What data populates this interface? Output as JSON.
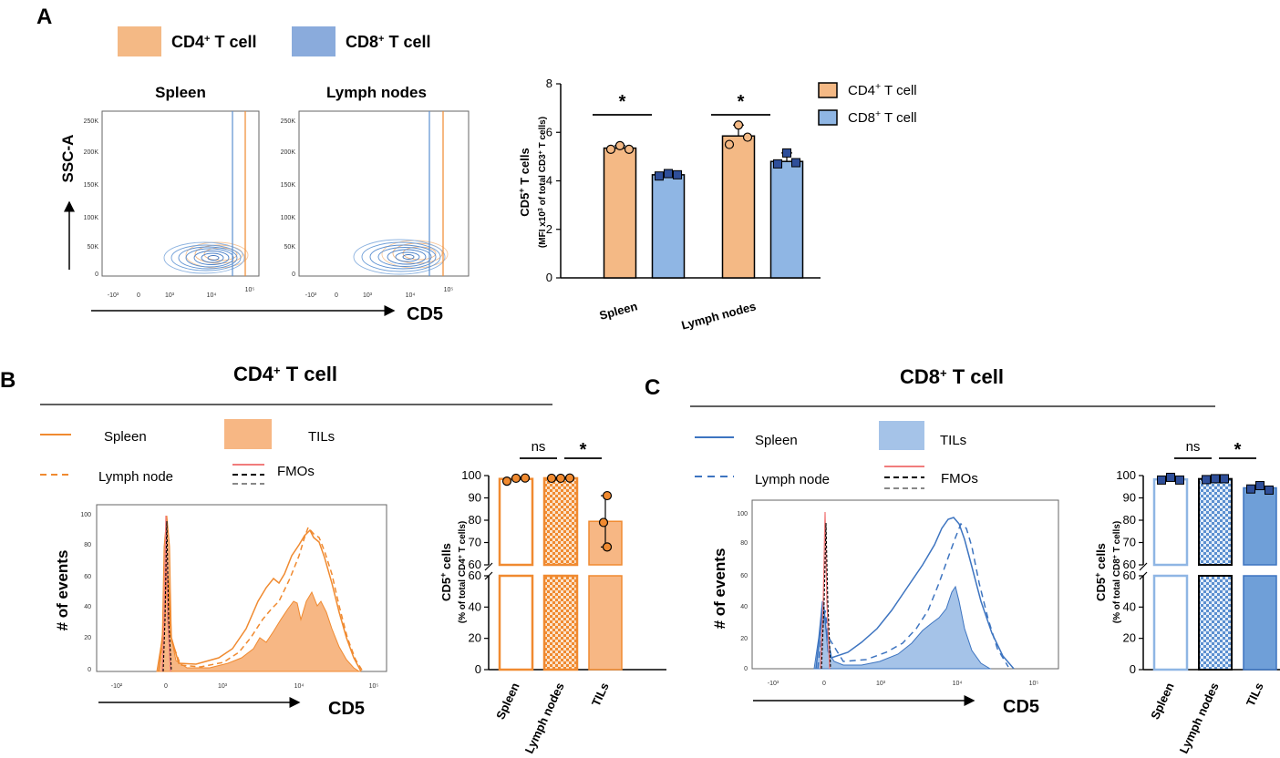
{
  "panel_a": {
    "letter": "A",
    "legend": [
      {
        "label": "CD4",
        "sup": "+",
        "rest": " T cell",
        "color": "#f4b985"
      },
      {
        "label": "CD8",
        "sup": "+",
        "rest": " T cell",
        "color": "#8aabdc"
      }
    ],
    "flow_titles": [
      "Spleen",
      "Lymph nodes"
    ],
    "flow_y_label": "SSC-A",
    "flow_x_label": "CD5",
    "flow_y_ticks": [
      "250K",
      "200K",
      "150K",
      "100K",
      "50K",
      "0"
    ],
    "flow_x_ticks": [
      "-10³",
      "0",
      "10³",
      "10⁴",
      "10⁵"
    ]
  },
  "panel_b": {
    "letter": "B",
    "title_main": "CD4",
    "title_sup": "+",
    "title_rest": " T cell",
    "legend_spleen": "Spleen",
    "legend_tils": "TILs",
    "legend_lymph": "Lymph node",
    "legend_fmos": "FMOs",
    "hist_y_label": "# of events",
    "hist_x_label": "CD5",
    "hist_y_ticks": [
      "100",
      "80",
      "60",
      "40",
      "20",
      "0"
    ],
    "hist_x_ticks": [
      "-10²",
      "0",
      "10³",
      "10⁴",
      "10⁵"
    ],
    "ns_label": "ns",
    "sig_label": "*"
  },
  "panel_c": {
    "letter": "C",
    "title_main": "CD8",
    "title_sup": "+",
    "title_rest": " T cell",
    "legend_spleen": "Spleen",
    "legend_tils": "TILs",
    "legend_lymph": "Lymph node",
    "legend_fmos": "FMOs",
    "hist_y_label": "# of events",
    "hist_x_label": "CD5",
    "hist_y_ticks": [
      "100",
      "80",
      "60",
      "40",
      "20",
      "0"
    ],
    "hist_x_ticks": [
      "-10³",
      "0",
      "10³",
      "10⁴",
      "10⁵"
    ],
    "ns_label": "ns",
    "sig_label": "*"
  },
  "chart_data": [
    {
      "id": "A_bar",
      "type": "bar",
      "categories": [
        "Spleen",
        "Lymph nodes"
      ],
      "series": [
        {
          "name": "CD4+ T cell",
          "values": [
            5.35,
            5.85
          ],
          "points": [
            [
              5.3,
              5.45,
              5.3
            ],
            [
              5.5,
              6.3,
              5.8
            ]
          ],
          "color": "#f4b985"
        },
        {
          "name": "CD8+ T cell",
          "values": [
            4.25,
            4.8
          ],
          "points": [
            [
              4.2,
              4.3,
              4.25
            ],
            [
              4.7,
              5.15,
              4.75
            ]
          ],
          "color": "#8fb6e4"
        }
      ],
      "ylabel": "CD5+ T cells",
      "ylabel2": "(MFI x10³ of total CD3+ T cells)",
      "ylim": [
        0,
        8
      ],
      "yticks": [
        "0",
        "2",
        "4",
        "6",
        "8"
      ],
      "legend": [
        "CD4+ T cell",
        "CD8+ T cell"
      ],
      "significance": [
        "*",
        "*"
      ]
    },
    {
      "id": "B_bar",
      "type": "bar",
      "categories": [
        "Spleen",
        "Lymph nodes",
        "TILs"
      ],
      "values": [
        98.5,
        98.8,
        79.5
      ],
      "points": [
        [
          97.5,
          98.8,
          98.9
        ],
        [
          98.8,
          98.8,
          98.9
        ],
        [
          91,
          79,
          68
        ]
      ],
      "ylabel": "CD5+ cells",
      "ylabel2": "(% of total CD4+ T cells)",
      "yticks_upper": [
        "60",
        "70",
        "80",
        "90",
        "100"
      ],
      "yticks_lower": [
        "0",
        "20",
        "40",
        "60"
      ],
      "ylim": [
        0,
        100
      ],
      "significance": [
        "ns",
        "*"
      ]
    },
    {
      "id": "C_bar",
      "type": "bar",
      "categories": [
        "Spleen",
        "Lymph nodes",
        "TILs"
      ],
      "values": [
        98.3,
        98.5,
        94.5
      ],
      "points": [
        [
          98,
          99.2,
          98
        ],
        [
          98.2,
          98.6,
          98.6
        ],
        [
          94,
          95.5,
          93.5
        ]
      ],
      "ylabel": "CD5+ cells",
      "ylabel2": "(% of total CD8+ T cells)",
      "yticks_upper": [
        "60",
        "70",
        "80",
        "90",
        "100"
      ],
      "yticks_lower": [
        "0",
        "20",
        "40",
        "60"
      ],
      "ylim": [
        0,
        100
      ],
      "significance": [
        "ns",
        "*"
      ]
    }
  ]
}
